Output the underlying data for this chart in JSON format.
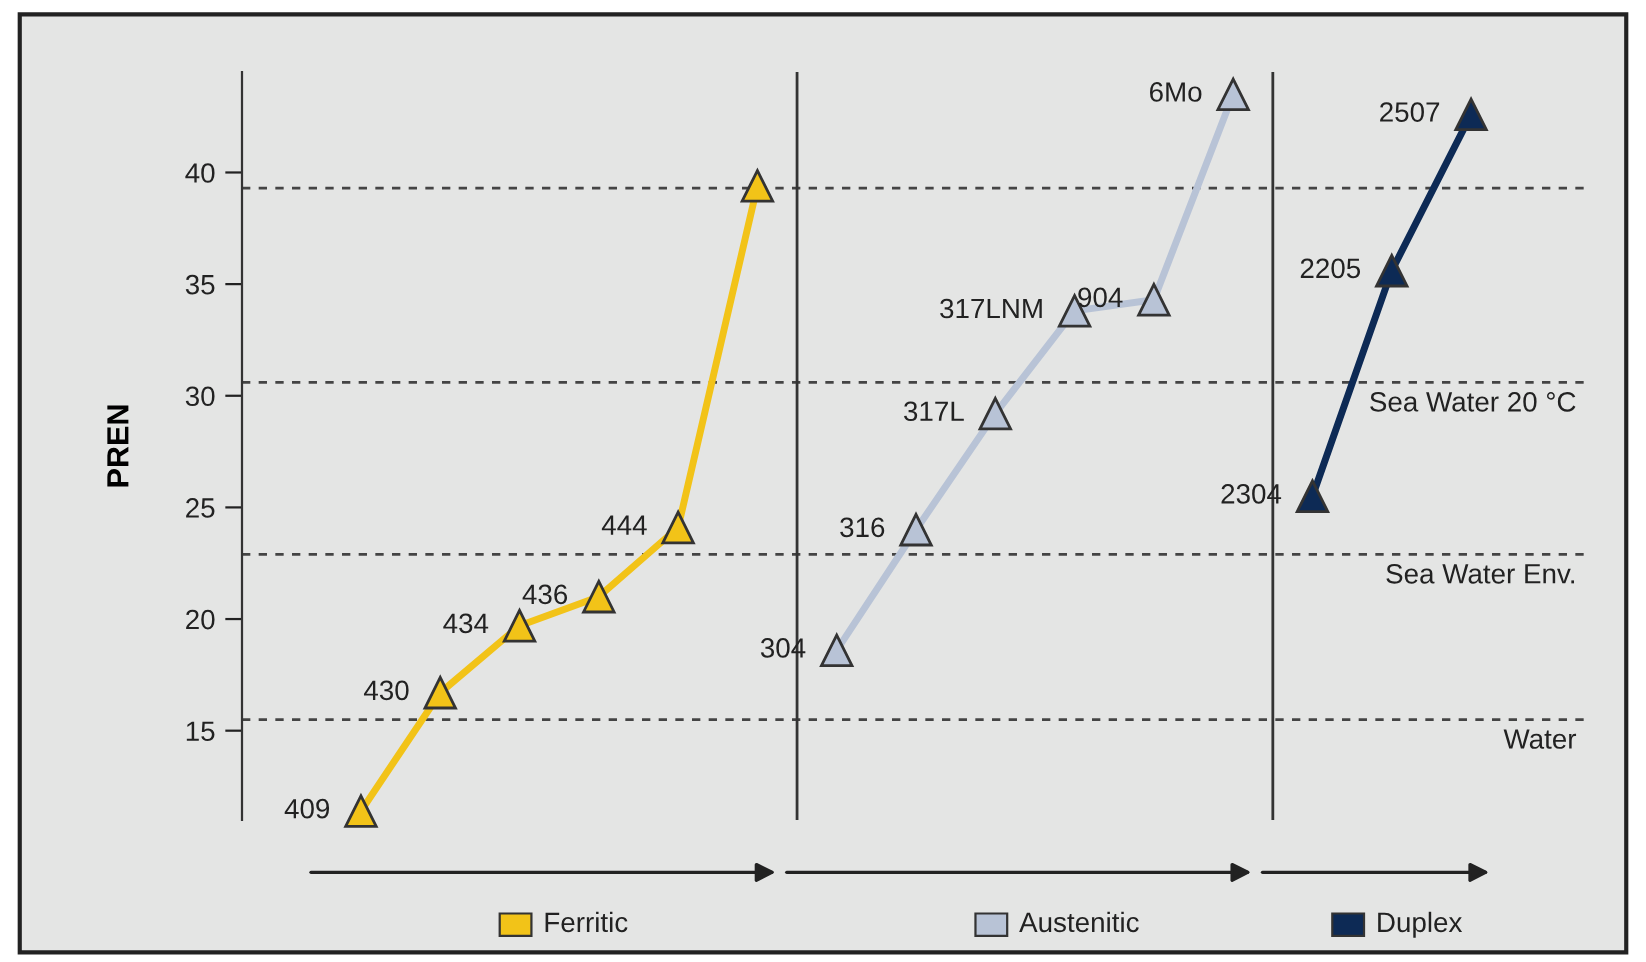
{
  "chart_data": {
    "type": "line",
    "ylabel": "PREN",
    "categories": [
      null,
      null,
      null,
      null,
      null,
      null,
      null,
      null,
      null,
      null,
      null,
      null,
      null,
      null,
      null,
      null,
      null
    ],
    "ylim": [
      11,
      44.5
    ],
    "yticks": [
      15,
      20,
      25,
      30,
      35,
      40
    ],
    "tick_labels": "y",
    "marker": "triangle",
    "legend": "bottom",
    "series": [
      {
        "name": "Ferritic",
        "color": "#f2c318",
        "values": [
          null,
          11.4,
          16.7,
          19.7,
          21.0,
          24.1,
          39.4,
          null,
          null,
          null,
          null,
          null,
          null,
          null,
          null,
          null,
          null
        ]
      },
      {
        "name": "Austenitic",
        "color": "#b8c3d6",
        "values": [
          null,
          null,
          null,
          null,
          null,
          null,
          null,
          18.6,
          24.0,
          29.2,
          33.8,
          34.3,
          43.5,
          null,
          null,
          null,
          null
        ]
      },
      {
        "name": "Duplex",
        "color": "#0d2a55",
        "values": [
          null,
          null,
          null,
          null,
          null,
          null,
          null,
          null,
          null,
          null,
          null,
          null,
          null,
          25.5,
          35.6,
          42.6,
          null
        ]
      }
    ],
    "annotations": [
      "409",
      "430",
      "434",
      "436",
      "444",
      null,
      "304",
      "316",
      "317L",
      "317LNM",
      "904",
      "6Mo",
      "2304",
      "2205",
      "2507"
    ],
    "ref_lines": [
      {
        "axis": "y",
        "value": 39.3,
        "line_style": "dashed"
      },
      {
        "axis": "y",
        "value": 30.6,
        "label": "Sea Water 20 °C",
        "line_style": "dashed"
      },
      {
        "axis": "y",
        "value": 22.9,
        "label": "Sea Water Env.",
        "line_style": "dashed"
      },
      {
        "axis": "y",
        "value": 15.5,
        "label": "Water",
        "line_style": "dashed"
      }
    ]
  }
}
